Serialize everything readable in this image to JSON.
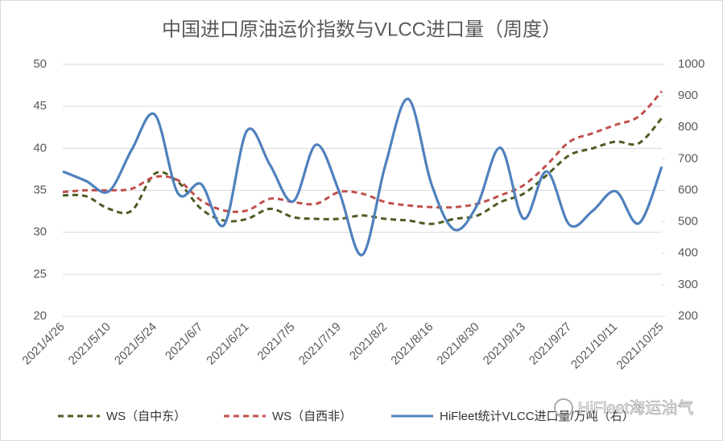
{
  "chart_data": {
    "type": "line",
    "title": "中国进口原油运价指数与VLCC进口量（周度）",
    "categories": [
      "2021/4/26",
      null,
      "2021/5/10",
      null,
      "2021/5/24",
      null,
      "2021/6/7",
      null,
      "2021/6/21",
      null,
      "2021/7/5",
      null,
      "2021/7/19",
      null,
      "2021/8/2",
      null,
      "2021/8/16",
      null,
      "2021/8/30",
      null,
      "2021/9/13",
      null,
      "2021/9/27",
      null,
      "2021/10/11",
      null,
      "2021/10/25"
    ],
    "series": [
      {
        "name": "WS（自中东）",
        "color": "#4a5e23",
        "dash": true,
        "values": [
          34.4,
          34.3,
          32.8,
          32.6,
          37.0,
          36.0,
          32.8,
          31.4,
          31.6,
          32.8,
          31.8,
          31.6,
          31.6,
          32.0,
          31.6,
          31.4,
          31.0,
          31.6,
          32.0,
          33.6,
          34.6,
          36.8,
          39.2,
          40.0,
          40.8,
          40.6,
          43.6
        ]
      },
      {
        "name": "WS（自西非）",
        "color": "#c0504d",
        "dash": true,
        "values": [
          34.8,
          35.0,
          35.0,
          35.2,
          36.6,
          36.2,
          33.8,
          32.6,
          32.6,
          34.0,
          33.6,
          33.4,
          34.8,
          34.6,
          33.6,
          33.2,
          33.0,
          33.0,
          33.4,
          34.4,
          35.6,
          38.0,
          40.8,
          41.8,
          42.8,
          43.8,
          46.8
        ]
      },
      {
        "name": "HiFleet统计VLCC进口量/万吨（右）",
        "color": "#4f81bd",
        "dash": false,
        "axis": "y2",
        "values": [
          660,
          630,
          597,
          730,
          840,
          590,
          620,
          490,
          790,
          680,
          565,
          745,
          595,
          395,
          680,
          890,
          620,
          475,
          555,
          735,
          510,
          660,
          490,
          535,
          597,
          495,
          675
        ]
      }
    ],
    "ylim": [
      20,
      50
    ],
    "yticks": [
      20,
      25,
      30,
      35,
      40,
      45,
      50
    ],
    "y2lim": [
      200,
      1000
    ],
    "y2ticks": [
      200,
      300,
      400,
      500,
      600,
      700,
      800,
      900,
      1000
    ],
    "grid": true,
    "legend": "bottom",
    "watermark": "HiFleet海运油气"
  }
}
